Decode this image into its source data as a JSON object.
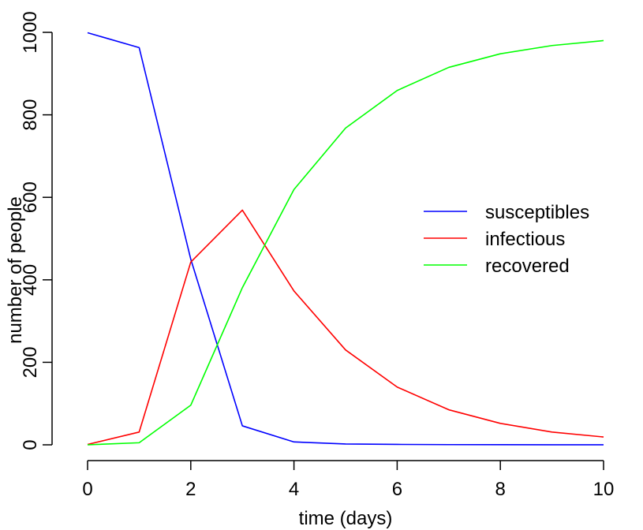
{
  "chart_data": {
    "type": "line",
    "title": "",
    "xlabel": "time (days)",
    "ylabel": "number of people",
    "xlim": [
      0,
      10
    ],
    "ylim": [
      0,
      1000
    ],
    "x_ticks": [
      0,
      2,
      4,
      6,
      8,
      10
    ],
    "y_ticks": [
      0,
      200,
      400,
      600,
      800,
      1000
    ],
    "grid": false,
    "legend_position": "right",
    "x": [
      0,
      1,
      2,
      3,
      4,
      5,
      6,
      7,
      8,
      9,
      10
    ],
    "series": [
      {
        "name": "susceptibles",
        "color": "#0000ff",
        "values": [
          999,
          963,
          450,
          46,
          7,
          2,
          1,
          0.5,
          0.3,
          0.2,
          0.1
        ]
      },
      {
        "name": "infectious",
        "color": "#ff0000",
        "values": [
          1,
          31,
          443,
          569,
          373,
          230,
          140,
          85,
          52,
          31,
          19
        ]
      },
      {
        "name": "recovered",
        "color": "#00ff00",
        "values": [
          0,
          5,
          96,
          381,
          619,
          768,
          859,
          915,
          948,
          968,
          980
        ]
      }
    ]
  }
}
